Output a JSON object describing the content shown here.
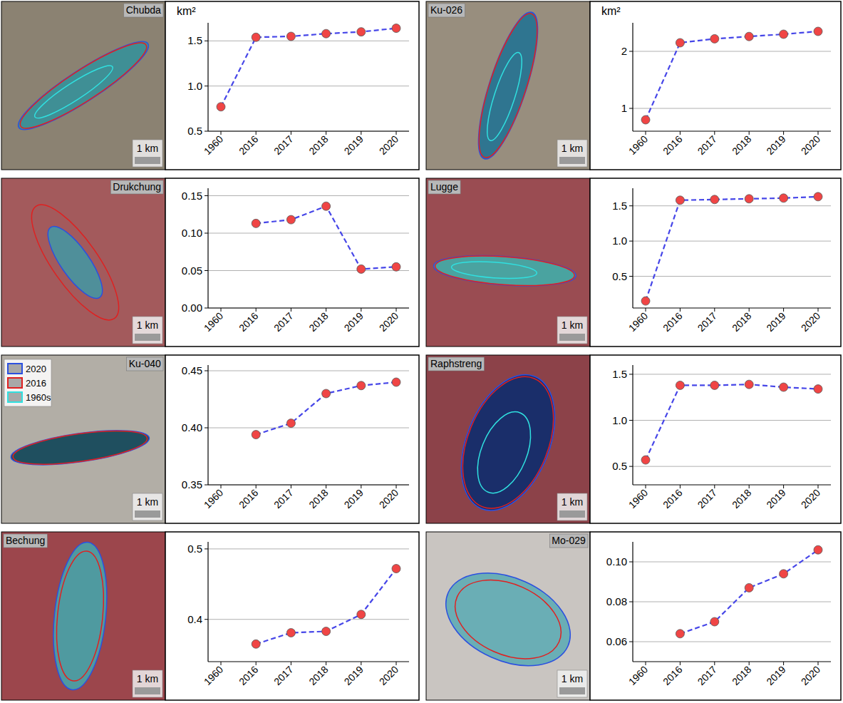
{
  "chart_data": [
    {
      "type": "line",
      "title": "Chubda",
      "ylabel": "km²",
      "annotations": [
        "1 km"
      ],
      "categories": [
        "1960",
        "2016",
        "2017",
        "2018",
        "2019",
        "2020"
      ],
      "values": [
        0.77,
        1.54,
        1.55,
        1.58,
        1.6,
        1.64
      ],
      "color": "#4646e8",
      "marker": "circle",
      "line_style": "dashed",
      "ylim": [
        0.5,
        1.7
      ],
      "yticks": [
        0.5,
        {
          "value": 1,
          "label": "1.0"
        },
        1.5
      ],
      "grid": true
    },
    {
      "type": "line",
      "title": "Ku-026",
      "ylabel": "km²",
      "annotations": [
        "1 km"
      ],
      "categories": [
        "1960",
        "2016",
        "2017",
        "2018",
        "2019",
        "2020"
      ],
      "values": [
        0.8,
        2.15,
        2.22,
        2.26,
        2.3,
        2.35
      ],
      "color": "#4646e8",
      "marker": "circle",
      "line_style": "dashed",
      "ylim": [
        0.6,
        2.5
      ],
      "yticks": [
        1,
        2
      ],
      "grid": true
    },
    {
      "type": "line",
      "title": "Drukchung",
      "annotations": [
        "1 km"
      ],
      "categories": [
        "1960",
        "2016",
        "2017",
        "2018",
        "2019",
        "2020"
      ],
      "values": [
        null,
        0.113,
        0.118,
        0.136,
        0.052,
        0.055
      ],
      "color": "#4646e8",
      "marker": "circle",
      "line_style": "dashed",
      "ylim": [
        0,
        0.16
      ],
      "yticks": [
        {
          "value": 0,
          "label": "0.00"
        },
        0.05,
        {
          "value": 0.1,
          "label": "0.10"
        },
        0.15
      ],
      "grid": true
    },
    {
      "type": "line",
      "title": "Lugge",
      "annotations": [
        "1 km"
      ],
      "categories": [
        "1960",
        "2016",
        "2017",
        "2018",
        "2019",
        "2020"
      ],
      "values": [
        0.15,
        1.58,
        1.59,
        1.6,
        1.61,
        1.63
      ],
      "color": "#4646e8",
      "marker": "circle",
      "line_style": "dashed",
      "ylim": [
        0.05,
        1.75
      ],
      "yticks": [
        0.5,
        {
          "value": 1,
          "label": "1.0"
        },
        1.5
      ],
      "grid": true
    },
    {
      "type": "line",
      "title": "Ku-040",
      "annotations": [
        "1 km"
      ],
      "categories": [
        "1960",
        "2016",
        "2017",
        "2018",
        "2019",
        "2020"
      ],
      "values": [
        null,
        0.394,
        0.404,
        0.43,
        0.437,
        0.44
      ],
      "color": "#4646e8",
      "marker": "circle",
      "line_style": "dashed",
      "ylim": [
        0.35,
        0.455
      ],
      "yticks": [
        0.35,
        {
          "value": 0.4,
          "label": "0.40"
        },
        0.45
      ],
      "grid": true
    },
    {
      "type": "line",
      "title": "Raphstreng",
      "annotations": [
        "1 km"
      ],
      "categories": [
        "1960",
        "2016",
        "2017",
        "2018",
        "2019",
        "2020"
      ],
      "values": [
        0.57,
        1.38,
        1.38,
        1.39,
        1.36,
        1.34
      ],
      "color": "#4646e8",
      "marker": "circle",
      "line_style": "dashed",
      "ylim": [
        0.3,
        1.6
      ],
      "yticks": [
        0.5,
        {
          "value": 1,
          "label": "1.0"
        },
        1.5
      ],
      "grid": true
    },
    {
      "type": "line",
      "title": "Bechung",
      "annotations": [
        "1 km"
      ],
      "categories": [
        "1960",
        "2016",
        "2017",
        "2018",
        "2019",
        "2020"
      ],
      "values": [
        null,
        0.365,
        0.381,
        0.383,
        0.407,
        0.472
      ],
      "color": "#4646e8",
      "marker": "circle",
      "line_style": "dashed",
      "ylim": [
        0.34,
        0.51
      ],
      "yticks": [
        0.4,
        0.5
      ],
      "grid": true
    },
    {
      "type": "line",
      "title": "Mo-029",
      "annotations": [
        "1 km"
      ],
      "categories": [
        "1960",
        "2016",
        "2017",
        "2018",
        "2019",
        "2020"
      ],
      "values": [
        null,
        0.064,
        0.07,
        0.087,
        0.094,
        0.106
      ],
      "color": "#4646e8",
      "marker": "circle",
      "line_style": "dashed",
      "ylim": [
        0.05,
        0.11
      ],
      "yticks": [
        0.06,
        0.08,
        {
          "value": 0.1,
          "label": "0.10"
        }
      ],
      "grid": true
    }
  ],
  "map_legend": [
    {
      "name": "2020",
      "color": "#2b50e0"
    },
    {
      "name": "2016",
      "color": "#e02020"
    },
    {
      "name": "1960s",
      "color": "#30e0e0"
    }
  ]
}
